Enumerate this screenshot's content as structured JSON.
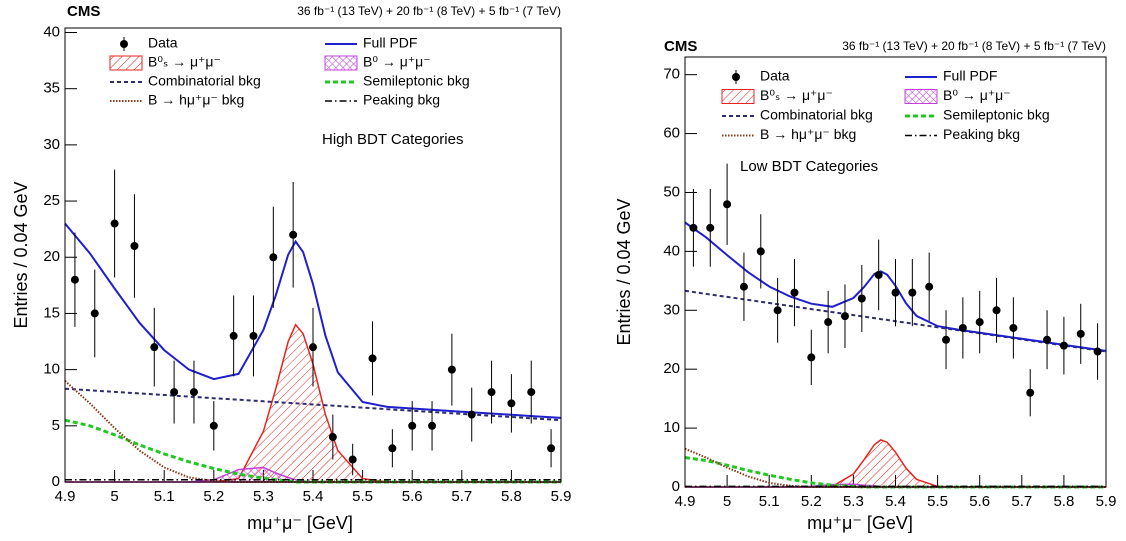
{
  "chart_data": [
    {
      "type": "line",
      "title": "CMS",
      "subtitle": "36 fb⁻¹ (13 TeV) + 20 fb⁻¹ (8 TeV) + 5 fb⁻¹ (7 TeV)",
      "annotation": "High BDT Categories",
      "xlabel": "mμ⁺μ⁻ [GeV]",
      "ylabel": "Entries / 0.04 GeV",
      "xlim": [
        4.9,
        5.9
      ],
      "xticks": [
        4.9,
        5,
        5.1,
        5.2,
        5.3,
        5.4,
        5.5,
        5.6,
        5.7,
        5.8,
        5.9
      ],
      "ylim": [
        0,
        40.4
      ],
      "yticks": [
        0,
        5,
        10,
        15,
        20,
        25,
        30,
        35,
        40
      ],
      "series": [
        {
          "name": "Data",
          "style": "points",
          "color": "#000000",
          "x": [
            4.92,
            4.96,
            5.0,
            5.04,
            5.08,
            5.12,
            5.16,
            5.2,
            5.24,
            5.28,
            5.32,
            5.36,
            5.4,
            5.44,
            5.48,
            5.52,
            5.56,
            5.6,
            5.64,
            5.68,
            5.72,
            5.76,
            5.8,
            5.84,
            5.88
          ],
          "values": [
            18,
            15,
            23,
            21,
            12,
            8,
            8,
            5,
            13,
            13,
            20,
            22,
            12,
            4,
            2,
            11,
            3,
            5,
            5,
            10,
            6,
            8,
            7,
            8,
            3
          ],
          "errors": [
            4.2,
            3.9,
            4.8,
            4.6,
            3.5,
            2.8,
            2.8,
            2.2,
            3.6,
            3.6,
            4.5,
            4.7,
            3.5,
            2.0,
            1.4,
            3.3,
            1.7,
            2.2,
            2.2,
            3.2,
            2.4,
            2.8,
            2.6,
            2.8,
            1.7
          ]
        },
        {
          "name": "Full PDF",
          "style": "solid",
          "color": "#1f1fcc",
          "x": [
            4.9,
            4.95,
            5.0,
            5.05,
            5.1,
            5.15,
            5.2,
            5.25,
            5.3,
            5.325,
            5.35,
            5.365,
            5.38,
            5.4,
            5.425,
            5.45,
            5.5,
            5.55,
            5.6,
            5.65,
            5.7,
            5.75,
            5.8,
            5.85,
            5.9
          ],
          "values": [
            23.0,
            20.36,
            17.22,
            14.18,
            11.74,
            10.0,
            9.16,
            9.62,
            13.53,
            16.61,
            20.24,
            21.4,
            20.46,
            17.6,
            13.03,
            9.76,
            7.12,
            6.68,
            6.54,
            6.4,
            6.26,
            6.12,
            5.98,
            5.84,
            5.7
          ]
        },
        {
          "name": "B⁰ₛ → μ⁺μ⁻",
          "style": "hatch",
          "color": "#e8231e",
          "x": [
            4.9,
            4.95,
            5.0,
            5.05,
            5.1,
            5.15,
            5.2,
            5.25,
            5.3,
            5.325,
            5.35,
            5.365,
            5.38,
            5.4,
            5.425,
            5.45,
            5.5,
            5.55,
            5.6,
            5.65,
            5.7,
            5.75,
            5.8,
            5.85,
            5.9
          ],
          "values": [
            0,
            0,
            0,
            0,
            0,
            0,
            0,
            0.3,
            4.5,
            8.3,
            12.5,
            14,
            13.2,
            10.5,
            6,
            2.8,
            0.3,
            0,
            0,
            0,
            0,
            0,
            0,
            0,
            0
          ]
        },
        {
          "name": "B⁰ → μ⁺μ⁻",
          "style": "crosshatch",
          "color": "#c040d8",
          "x": [
            4.9,
            4.95,
            5.0,
            5.05,
            5.1,
            5.15,
            5.2,
            5.25,
            5.3,
            5.325,
            5.35,
            5.365,
            5.38,
            5.4,
            5.425,
            5.45,
            5.5,
            5.55,
            5.6,
            5.65,
            5.7,
            5.75,
            5.8,
            5.85,
            5.9
          ],
          "values": [
            0,
            0,
            0,
            0,
            0,
            0,
            0.2,
            1.1,
            1.3,
            0.8,
            0.4,
            0.2,
            0.1,
            0,
            0,
            0,
            0,
            0,
            0,
            0,
            0,
            0,
            0,
            0,
            0
          ]
        },
        {
          "name": "Combinatorial bkg",
          "style": "dashed",
          "color": "#2e2e6e",
          "x": [
            4.9,
            4.95,
            5.0,
            5.05,
            5.1,
            5.15,
            5.2,
            5.25,
            5.3,
            5.325,
            5.35,
            5.365,
            5.38,
            5.4,
            5.425,
            5.45,
            5.5,
            5.55,
            5.6,
            5.65,
            5.7,
            5.75,
            5.8,
            5.85,
            5.9
          ],
          "values": [
            8.3,
            8.16,
            8.02,
            7.88,
            7.74,
            7.6,
            7.46,
            7.32,
            7.18,
            7.11,
            7.04,
            7.0,
            6.96,
            6.9,
            6.83,
            6.76,
            6.62,
            6.48,
            6.34,
            6.2,
            6.06,
            5.92,
            5.78,
            5.64,
            5.5
          ]
        },
        {
          "name": "Semileptonic bkg",
          "style": "thickdash",
          "color": "#22c822",
          "x": [
            4.9,
            4.95,
            5.0,
            5.05,
            5.1,
            5.15,
            5.2,
            5.25,
            5.3,
            5.325,
            5.35,
            5.365,
            5.38,
            5.4,
            5.425,
            5.45,
            5.5,
            5.55,
            5.6,
            5.65,
            5.7,
            5.75,
            5.8,
            5.85,
            5.9
          ],
          "values": [
            5.5,
            5.0,
            4.2,
            3.3,
            2.5,
            1.8,
            1.2,
            0.7,
            0.35,
            0.2,
            0.1,
            0,
            0,
            0,
            0,
            0,
            0,
            0,
            0,
            0,
            0,
            0,
            0,
            0,
            0
          ]
        },
        {
          "name": "B → hμ⁺μ⁻ bkg",
          "style": "dotted",
          "color": "#8b3a1a",
          "x": [
            4.9,
            4.95,
            5.0,
            5.05,
            5.1,
            5.15,
            5.2,
            5.25,
            5.3,
            5.325,
            5.35,
            5.365,
            5.38,
            5.4,
            5.425,
            5.45,
            5.5,
            5.55,
            5.6,
            5.65,
            5.7,
            5.75,
            5.8,
            5.85,
            5.9
          ],
          "values": [
            9,
            7,
            4.8,
            2.8,
            1.3,
            0.4,
            0.1,
            0,
            0,
            0,
            0,
            0,
            0,
            0,
            0,
            0,
            0,
            0,
            0,
            0,
            0,
            0,
            0,
            0,
            0
          ]
        },
        {
          "name": "Peaking bkg",
          "style": "dashdot",
          "color": "#000000",
          "x": [
            4.9,
            4.95,
            5.0,
            5.05,
            5.1,
            5.15,
            5.2,
            5.25,
            5.3,
            5.325,
            5.35,
            5.365,
            5.38,
            5.4,
            5.425,
            5.45,
            5.5,
            5.55,
            5.6,
            5.65,
            5.7,
            5.75,
            5.8,
            5.85,
            5.9
          ],
          "values": [
            0.2,
            0.2,
            0.2,
            0.2,
            0.2,
            0.2,
            0.2,
            0.2,
            0.2,
            0.2,
            0.2,
            0.2,
            0.2,
            0.2,
            0.2,
            0.2,
            0.2,
            0.2,
            0.2,
            0.2,
            0.2,
            0.2,
            0.2,
            0.2,
            0.2
          ]
        }
      ]
    },
    {
      "type": "line",
      "title": "CMS",
      "subtitle": "36 fb⁻¹ (13 TeV) + 20 fb⁻¹ (8 TeV) + 5 fb⁻¹ (7 TeV)",
      "annotation": "Low BDT Categories",
      "xlabel": "mμ⁺μ⁻ [GeV]",
      "ylabel": "Entries / 0.04 GeV",
      "xlim": [
        4.9,
        5.9
      ],
      "xticks": [
        4.9,
        5,
        5.1,
        5.2,
        5.3,
        5.4,
        5.5,
        5.6,
        5.7,
        5.8,
        5.9
      ],
      "ylim": [
        0,
        73
      ],
      "yticks": [
        0,
        10,
        20,
        30,
        40,
        50,
        60,
        70
      ],
      "series": [
        {
          "name": "Data",
          "style": "points",
          "color": "#000000",
          "x": [
            4.92,
            4.96,
            5.0,
            5.04,
            5.08,
            5.12,
            5.16,
            5.2,
            5.24,
            5.28,
            5.32,
            5.36,
            5.4,
            5.44,
            5.48,
            5.52,
            5.56,
            5.6,
            5.64,
            5.68,
            5.72,
            5.76,
            5.8,
            5.84,
            5.88
          ],
          "values": [
            44,
            44,
            48,
            34,
            40,
            30,
            33,
            22,
            28,
            29,
            32,
            36,
            33,
            33,
            34,
            25,
            27,
            28,
            30,
            27,
            16,
            25,
            24,
            26,
            23
          ],
          "errors": [
            6.6,
            6.6,
            6.9,
            5.8,
            6.3,
            5.5,
            5.7,
            4.7,
            5.3,
            5.4,
            5.7,
            6.0,
            5.7,
            5.7,
            5.8,
            5.0,
            5.2,
            5.3,
            5.5,
            5.2,
            4.0,
            5.0,
            4.9,
            5.1,
            4.8
          ]
        },
        {
          "name": "Full PDF",
          "style": "solid",
          "color": "#1f1fcc",
          "x": [
            4.9,
            4.95,
            5.0,
            5.05,
            5.1,
            5.15,
            5.2,
            5.25,
            5.3,
            5.325,
            5.35,
            5.365,
            5.38,
            5.4,
            5.425,
            5.45,
            5.5,
            5.55,
            5.6,
            5.65,
            5.7,
            5.75,
            5.8,
            5.85,
            5.9
          ],
          "values": [
            44.9,
            42.39,
            39.37,
            36.46,
            34.04,
            32.33,
            31.11,
            30.6,
            32.08,
            33.92,
            36.17,
            36.61,
            36.06,
            34.15,
            31.19,
            29.04,
            27.32,
            26.71,
            26.19,
            25.68,
            25.16,
            24.65,
            24.13,
            23.62,
            23.1
          ]
        },
        {
          "name": "B⁰ₛ → μ⁺μ⁻",
          "style": "hatch",
          "color": "#e8231e",
          "x": [
            4.9,
            4.95,
            5.0,
            5.05,
            5.1,
            5.15,
            5.2,
            5.25,
            5.3,
            5.325,
            5.35,
            5.365,
            5.38,
            5.4,
            5.425,
            5.45,
            5.5,
            5.55,
            5.6,
            5.65,
            5.7,
            5.75,
            5.8,
            5.85,
            5.9
          ],
          "values": [
            0,
            0,
            0,
            0,
            0,
            0,
            0,
            0.1,
            2.2,
            4.6,
            7.2,
            8,
            7.6,
            5.9,
            3.2,
            1.3,
            0.1,
            0,
            0,
            0,
            0,
            0,
            0,
            0,
            0
          ]
        },
        {
          "name": "B⁰ → μ⁺μ⁻",
          "style": "crosshatch",
          "color": "#c040d8",
          "x": [
            4.9,
            4.95,
            5.0,
            5.05,
            5.1,
            5.15,
            5.2,
            5.25,
            5.3,
            5.325,
            5.35,
            5.365,
            5.38,
            5.4,
            5.425,
            5.45,
            5.5,
            5.55,
            5.6,
            5.65,
            5.7,
            5.75,
            5.8,
            5.85,
            5.9
          ],
          "values": [
            0,
            0,
            0,
            0,
            0,
            0,
            0.1,
            0.4,
            0.5,
            0.3,
            0.2,
            0,
            0,
            0,
            0,
            0,
            0,
            0,
            0,
            0,
            0,
            0,
            0,
            0,
            0
          ]
        },
        {
          "name": "Combinatorial bkg",
          "style": "dashed",
          "color": "#2e2e6e",
          "x": [
            4.9,
            4.95,
            5.0,
            5.05,
            5.1,
            5.15,
            5.2,
            5.25,
            5.3,
            5.325,
            5.35,
            5.365,
            5.38,
            5.4,
            5.425,
            5.45,
            5.5,
            5.55,
            5.6,
            5.65,
            5.7,
            5.75,
            5.8,
            5.85,
            5.9
          ],
          "values": [
            33.3,
            32.79,
            32.27,
            31.76,
            31.24,
            30.73,
            30.21,
            29.7,
            29.18,
            28.92,
            28.67,
            28.51,
            28.36,
            28.15,
            27.89,
            27.64,
            27.12,
            26.61,
            26.09,
            25.58,
            25.06,
            24.55,
            24.03,
            23.52,
            23.0
          ]
        },
        {
          "name": "Semileptonic bkg",
          "style": "thickdash",
          "color": "#22c822",
          "x": [
            4.9,
            4.95,
            5.0,
            5.05,
            5.1,
            5.15,
            5.2,
            5.25,
            5.3,
            5.325,
            5.35,
            5.365,
            5.38,
            5.4,
            5.425,
            5.45,
            5.5,
            5.55,
            5.6,
            5.65,
            5.7,
            5.75,
            5.8,
            5.85,
            5.9
          ],
          "values": [
            5,
            4.5,
            3.7,
            2.8,
            2.0,
            1.3,
            0.7,
            0.3,
            0.1,
            0,
            0,
            0,
            0,
            0,
            0,
            0,
            0,
            0,
            0,
            0,
            0,
            0,
            0,
            0,
            0
          ]
        },
        {
          "name": "B → hμ⁺μ⁻ bkg",
          "style": "dotted",
          "color": "#8b3a1a",
          "x": [
            4.9,
            4.95,
            5.0,
            5.05,
            5.1,
            5.15,
            5.2,
            5.25,
            5.3,
            5.325,
            5.35,
            5.365,
            5.38,
            5.4,
            5.425,
            5.45,
            5.5,
            5.55,
            5.6,
            5.65,
            5.7,
            5.75,
            5.8,
            5.85,
            5.9
          ],
          "values": [
            6.5,
            5,
            3.3,
            1.8,
            0.7,
            0.2,
            0,
            0,
            0,
            0,
            0,
            0,
            0,
            0,
            0,
            0,
            0,
            0,
            0,
            0,
            0,
            0,
            0,
            0,
            0
          ]
        },
        {
          "name": "Peaking bkg",
          "style": "dashdot",
          "color": "#000000",
          "x": [
            4.9,
            4.95,
            5.0,
            5.05,
            5.1,
            5.15,
            5.2,
            5.25,
            5.3,
            5.325,
            5.35,
            5.365,
            5.38,
            5.4,
            5.425,
            5.45,
            5.5,
            5.55,
            5.6,
            5.65,
            5.7,
            5.75,
            5.8,
            5.85,
            5.9
          ],
          "values": [
            0.1,
            0.1,
            0.1,
            0.1,
            0.1,
            0.1,
            0.1,
            0.1,
            0.1,
            0.1,
            0.1,
            0.1,
            0.1,
            0.1,
            0.1,
            0.1,
            0.1,
            0.1,
            0.1,
            0.1,
            0.1,
            0.1,
            0.1,
            0.1,
            0.1
          ]
        }
      ]
    }
  ]
}
